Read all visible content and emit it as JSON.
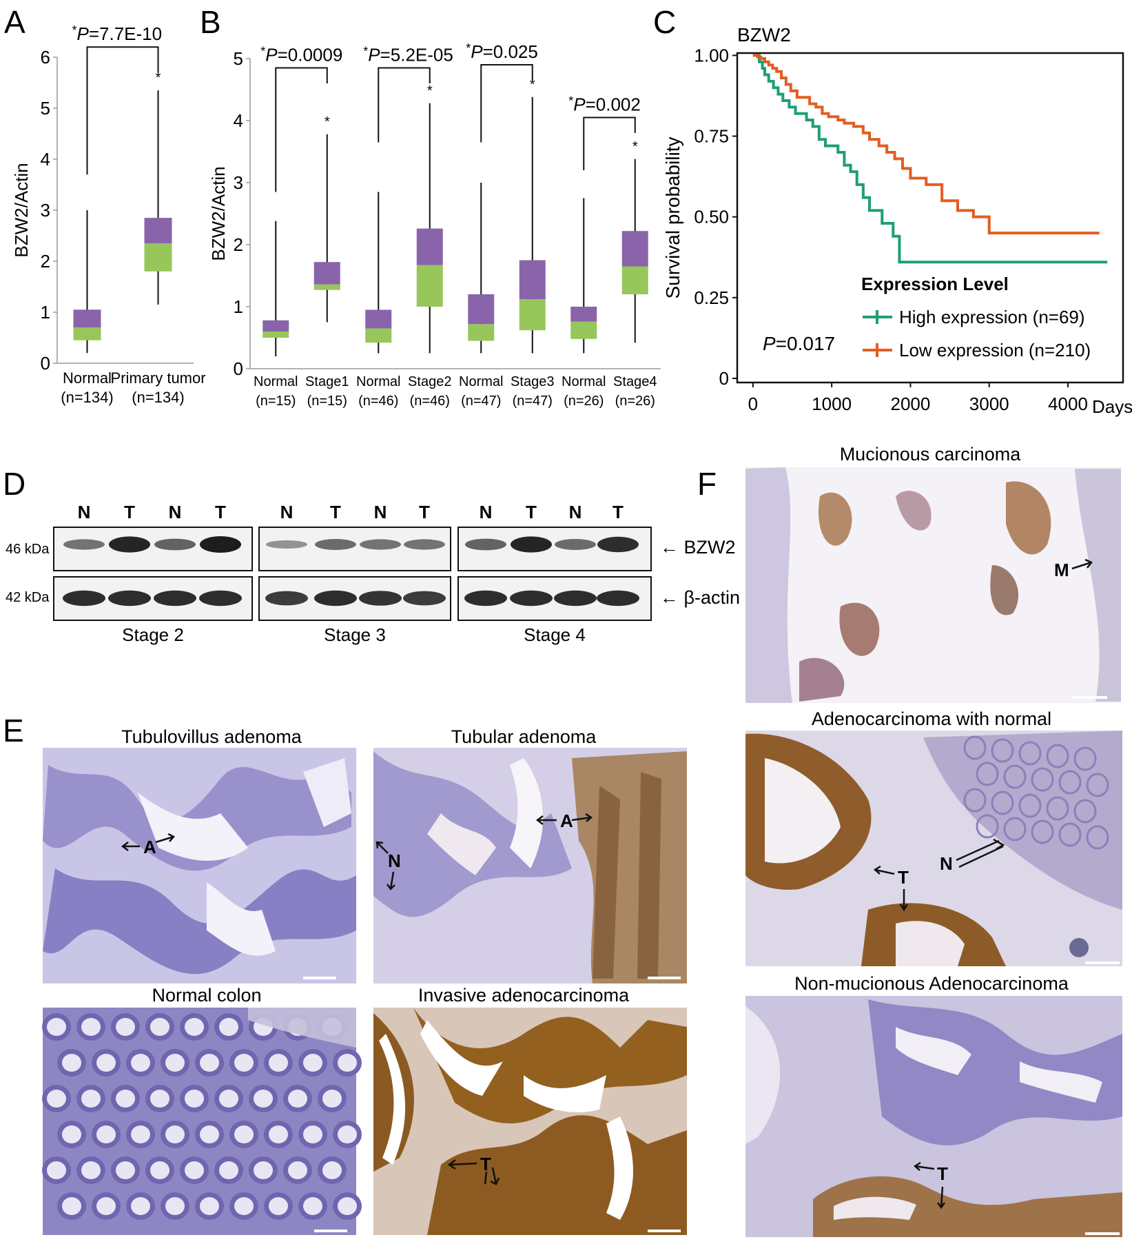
{
  "panels": {
    "A": "A",
    "B": "B",
    "C": "C",
    "D": "D",
    "E": "E",
    "F": "F"
  },
  "colors": {
    "box_upper": "#8a64ab",
    "box_lower": "#97c65a",
    "high_expression": "#1f9e78",
    "low_expression": "#e35d22",
    "ihc_tissue_blue": "#8f86c4",
    "ihc_dab_brown": "#9b6a2f"
  },
  "chart_data": [
    {
      "type": "box",
      "panel": "A",
      "ylabel": "BZW2/Actin",
      "ylim": [
        0,
        6
      ],
      "yticks": [
        0,
        1,
        2,
        3,
        4,
        5,
        6
      ],
      "categories": [
        "Normal",
        "Primary tumor"
      ],
      "category_counts": [
        "(n=134)",
        "(n=134)"
      ],
      "boxes": [
        {
          "min": 0.2,
          "q1": 0.45,
          "median": 0.7,
          "q3": 1.05,
          "max": 3.0
        },
        {
          "min": 1.15,
          "q1": 1.8,
          "median": 2.35,
          "q3": 2.85,
          "max": 5.35
        }
      ],
      "significance": [
        {
          "from": 0,
          "to": 1,
          "label_star": "*",
          "label_p": "P",
          "label_value": "=7.7E-10",
          "box_star": "*",
          "bracket_y": 6.2,
          "left_drop": 3.7,
          "right_drop": 5.7
        }
      ]
    },
    {
      "type": "box",
      "panel": "B",
      "ylabel": "BZW2/Actin",
      "ylim": [
        0,
        5
      ],
      "yticks": [
        0,
        1,
        2,
        3,
        4,
        5
      ],
      "categories": [
        "Normal",
        "Stage1",
        "Normal",
        "Stage2",
        "Normal",
        "Stage3",
        "Normal",
        "Stage4"
      ],
      "category_counts": [
        "(n=15)",
        "(n=15)",
        "(n=46)",
        "(n=46)",
        "(n=47)",
        "(n=47)",
        "(n=26)",
        "(n=26)"
      ],
      "boxes": [
        {
          "min": 0.2,
          "q1": 0.5,
          "median": 0.6,
          "q3": 0.78,
          "max": 2.38
        },
        {
          "min": 0.75,
          "q1": 1.27,
          "median": 1.36,
          "q3": 1.72,
          "max": 3.78
        },
        {
          "min": 0.25,
          "q1": 0.42,
          "median": 0.65,
          "q3": 0.95,
          "max": 2.85
        },
        {
          "min": 0.25,
          "q1": 1.0,
          "median": 1.67,
          "q3": 2.26,
          "max": 4.28
        },
        {
          "min": 0.25,
          "q1": 0.45,
          "median": 0.72,
          "q3": 1.2,
          "max": 3.0
        },
        {
          "min": 0.25,
          "q1": 0.62,
          "median": 1.12,
          "q3": 1.75,
          "max": 4.38
        },
        {
          "min": 0.25,
          "q1": 0.48,
          "median": 0.76,
          "q3": 1.0,
          "max": 2.75
        },
        {
          "min": 0.42,
          "q1": 1.2,
          "median": 1.65,
          "q3": 2.22,
          "max": 3.38
        }
      ],
      "significance": [
        {
          "from": 0,
          "to": 1,
          "label_star": "*",
          "label_p": "P",
          "label_value": "=0.0009",
          "box_star": "*",
          "bracket_y": 4.85,
          "left_drop": 2.85,
          "right_drop": 4.6
        },
        {
          "from": 2,
          "to": 3,
          "label_star": "*",
          "label_p": "P",
          "label_value": "=5.2E-05",
          "box_star": "*",
          "bracket_y": 4.85,
          "left_drop": 3.65,
          "right_drop": 4.6
        },
        {
          "from": 4,
          "to": 5,
          "label_star": "*",
          "label_p": "P",
          "label_value": "=0.025",
          "box_star": "*",
          "bracket_y": 4.9,
          "left_drop": 3.65,
          "right_drop": 4.65
        },
        {
          "from": 6,
          "to": 7,
          "label_star": "*",
          "label_p": "P",
          "label_value": "=0.002",
          "box_star": "*",
          "bracket_y": 4.05,
          "left_drop": 3.2,
          "right_drop": 3.8
        }
      ]
    },
    {
      "type": "line",
      "panel": "C",
      "title": "BZW2",
      "ylabel": "Survival probability",
      "x_unit": "Days",
      "xlim": [
        -200,
        4700
      ],
      "ylim": [
        0,
        1.02
      ],
      "xticks": [
        0,
        1000,
        2000,
        3000,
        4000
      ],
      "yticks": [
        "0",
        "0.25",
        "0.50",
        "0.75",
        "1.00"
      ],
      "legend_title": "Expression Level",
      "p_label_p": "P",
      "p_label_value": "=0.017",
      "series": [
        {
          "name": "High expression (n=69)",
          "color_key": "high_expression",
          "x": [
            0,
            80,
            120,
            150,
            200,
            260,
            320,
            380,
            460,
            540,
            620,
            680,
            760,
            840,
            920,
            1000,
            1080,
            1160,
            1240,
            1320,
            1400,
            1480,
            1560,
            1640,
            1720,
            1780,
            1860,
            4500
          ],
          "y": [
            1.0,
            0.98,
            0.96,
            0.94,
            0.92,
            0.9,
            0.88,
            0.86,
            0.84,
            0.82,
            0.82,
            0.8,
            0.78,
            0.74,
            0.72,
            0.72,
            0.7,
            0.66,
            0.64,
            0.6,
            0.56,
            0.52,
            0.52,
            0.48,
            0.48,
            0.44,
            0.36,
            0.36
          ]
        },
        {
          "name": "Low expression (n=210)",
          "color_key": "low_expression",
          "x": [
            0,
            60,
            100,
            150,
            200,
            250,
            300,
            360,
            420,
            480,
            560,
            640,
            720,
            800,
            880,
            960,
            1080,
            1160,
            1280,
            1400,
            1480,
            1600,
            1700,
            1800,
            1900,
            2000,
            2200,
            2400,
            2600,
            2800,
            3000,
            4400
          ],
          "y": [
            1.0,
            0.995,
            0.99,
            0.98,
            0.97,
            0.96,
            0.95,
            0.93,
            0.91,
            0.89,
            0.87,
            0.87,
            0.85,
            0.84,
            0.82,
            0.81,
            0.8,
            0.79,
            0.78,
            0.76,
            0.74,
            0.72,
            0.7,
            0.68,
            0.65,
            0.62,
            0.6,
            0.55,
            0.52,
            0.5,
            0.45,
            0.45
          ]
        }
      ]
    }
  ],
  "blot": {
    "groups": [
      {
        "lanes": [
          "N",
          "T",
          "N",
          "T"
        ],
        "stage": "Stage 2",
        "bzw2": [
          0.45,
          0.95,
          0.55,
          1.0
        ],
        "actin": [
          0.9,
          0.9,
          0.9,
          0.9
        ]
      },
      {
        "lanes": [
          "N",
          "T",
          "N",
          "T"
        ],
        "stage": "Stage 3",
        "bzw2": [
          0.25,
          0.5,
          0.45,
          0.45
        ],
        "actin": [
          0.8,
          0.9,
          0.85,
          0.8
        ]
      },
      {
        "lanes": [
          "N",
          "T",
          "N",
          "T"
        ],
        "stage": "Stage 4",
        "bzw2": [
          0.55,
          0.95,
          0.5,
          0.9
        ],
        "actin": [
          0.9,
          0.9,
          0.9,
          0.9
        ]
      }
    ],
    "mw_bzw2": "46 kDa",
    "mw_actin": "42 kDa",
    "label_bzw2": "← BZW2",
    "label_actin": "← β-actin"
  },
  "ihc": {
    "tubulovillus": "Tubulovillus adenoma",
    "tubular": "Tubular adenoma",
    "normal_colon": "Normal colon",
    "invasive": "Invasive adenocarcinoma",
    "mucionous": "Mucionous carcinoma",
    "adeno_normal": "Adenocarcinoma with normal",
    "nonmucionous": "Non-mucionous Adenocarcinoma",
    "marker_A": "A",
    "marker_N": "N",
    "marker_T": "T",
    "marker_M": "M"
  }
}
